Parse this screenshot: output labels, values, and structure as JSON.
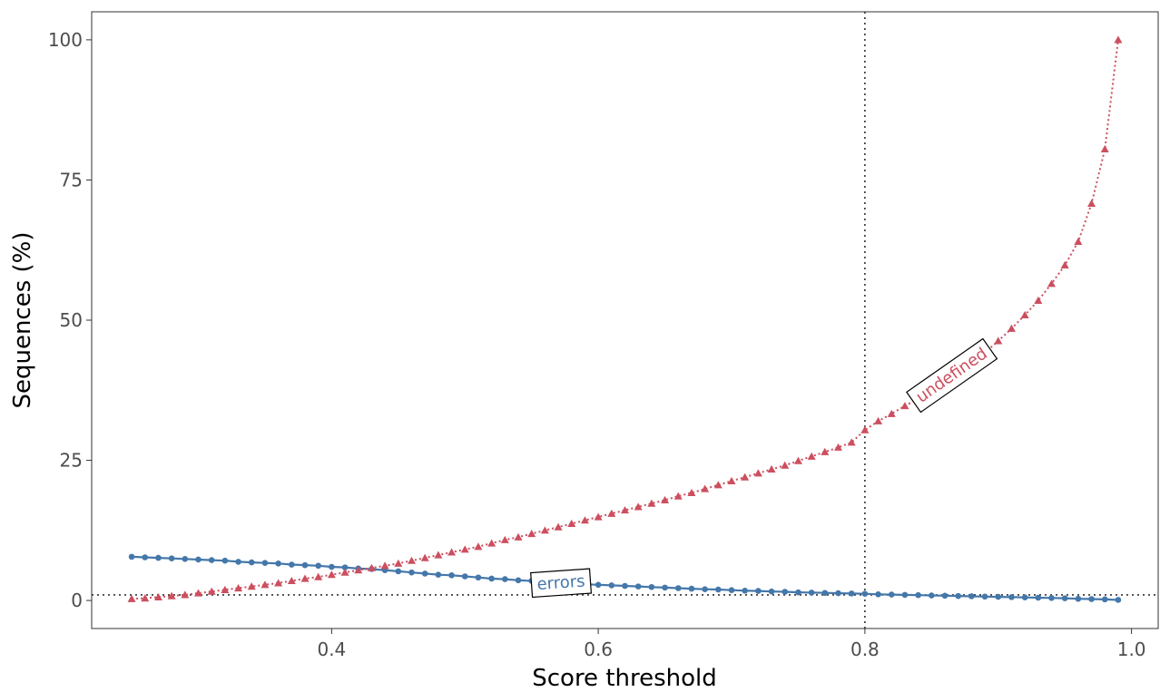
{
  "chart_data": {
    "type": "line",
    "xlabel": "Score threshold",
    "ylabel": "Sequences (%)",
    "xlim": [
      0.22,
      1.02
    ],
    "ylim": [
      -5,
      105
    ],
    "x_ticks": [
      0.4,
      0.6,
      0.8,
      1.0
    ],
    "x_tick_labels": [
      "0.4",
      "0.6",
      "0.8",
      "1.0"
    ],
    "y_ticks": [
      0,
      25,
      50,
      75,
      100
    ],
    "y_tick_labels": [
      "0",
      "25",
      "50",
      "75",
      "100"
    ],
    "grid": false,
    "reference_lines": {
      "vertical_x": 0.8,
      "horizontal_y": 1
    },
    "x": [
      0.25,
      0.26,
      0.27,
      0.28,
      0.29,
      0.3,
      0.31,
      0.32,
      0.33,
      0.34,
      0.35,
      0.36,
      0.37,
      0.38,
      0.39,
      0.4,
      0.41,
      0.42,
      0.43,
      0.44,
      0.45,
      0.46,
      0.47,
      0.48,
      0.49,
      0.5,
      0.51,
      0.52,
      0.53,
      0.54,
      0.55,
      0.56,
      0.57,
      0.58,
      0.59,
      0.6,
      0.61,
      0.62,
      0.63,
      0.64,
      0.65,
      0.66,
      0.67,
      0.68,
      0.69,
      0.7,
      0.71,
      0.72,
      0.73,
      0.74,
      0.75,
      0.76,
      0.77,
      0.78,
      0.79,
      0.8,
      0.81,
      0.82,
      0.83,
      0.84,
      0.85,
      0.86,
      0.87,
      0.88,
      0.89,
      0.9,
      0.91,
      0.92,
      0.93,
      0.94,
      0.95,
      0.96,
      0.97,
      0.98,
      0.99
    ],
    "series": [
      {
        "name": "errors",
        "color": "#4477aa",
        "line_style": "solid",
        "marker": "circle",
        "values": [
          7.8,
          7.7,
          7.6,
          7.5,
          7.4,
          7.3,
          7.2,
          7.1,
          6.9,
          6.8,
          6.7,
          6.6,
          6.4,
          6.3,
          6.2,
          6.0,
          5.9,
          5.7,
          5.6,
          5.4,
          5.2,
          5.0,
          4.8,
          4.6,
          4.5,
          4.3,
          4.1,
          3.9,
          3.8,
          3.6,
          3.5,
          3.3,
          3.2,
          3.0,
          2.9,
          2.8,
          2.7,
          2.6,
          2.5,
          2.4,
          2.3,
          2.2,
          2.1,
          2.0,
          1.95,
          1.85,
          1.75,
          1.7,
          1.6,
          1.55,
          1.45,
          1.4,
          1.35,
          1.3,
          1.25,
          1.2,
          1.1,
          1.05,
          1.0,
          0.95,
          0.9,
          0.85,
          0.8,
          0.75,
          0.7,
          0.65,
          0.6,
          0.55,
          0.5,
          0.45,
          0.4,
          0.3,
          0.25,
          0.2,
          0.1
        ]
      },
      {
        "name": "undefined",
        "color": "#cc4f5f",
        "line_style": "dotted",
        "marker": "triangle",
        "values": [
          0.3,
          0.4,
          0.6,
          0.8,
          1.0,
          1.3,
          1.6,
          1.9,
          2.2,
          2.5,
          2.8,
          3.1,
          3.5,
          3.9,
          4.2,
          4.6,
          5.0,
          5.4,
          5.8,
          6.2,
          6.6,
          7.1,
          7.6,
          8.1,
          8.6,
          9.1,
          9.6,
          10.2,
          10.8,
          11.3,
          11.9,
          12.5,
          13.1,
          13.7,
          14.3,
          14.9,
          15.5,
          16.1,
          16.7,
          17.3,
          17.9,
          18.6,
          19.2,
          19.9,
          20.6,
          21.3,
          22.0,
          22.7,
          23.4,
          24.1,
          24.9,
          25.7,
          26.5,
          27.3,
          28.2,
          30.4,
          32.0,
          33.3,
          34.7,
          36.0,
          37.5,
          39.0,
          40.6,
          42.3,
          44.2,
          46.3,
          48.5,
          50.9,
          53.5,
          56.5,
          59.8,
          64.0,
          70.8,
          80.5,
          100.0
        ]
      }
    ],
    "annotations": [
      {
        "text": "errors",
        "x": 0.572,
        "y": 3.2,
        "angle": -4,
        "color": "#4477aa"
      },
      {
        "text": "undefined",
        "x": 0.865,
        "y": 40.2,
        "angle": -35,
        "color": "#cc4f5f"
      }
    ]
  }
}
